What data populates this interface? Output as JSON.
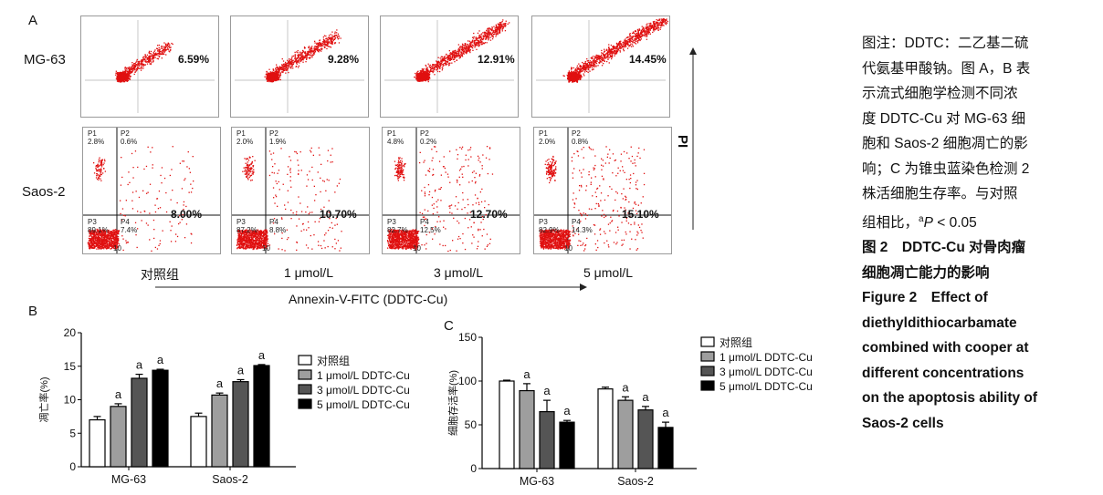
{
  "panels": {
    "a": "A",
    "b": "B",
    "c": "C"
  },
  "flow": {
    "rows": [
      "MG-63",
      "Saos-2"
    ],
    "conditions": [
      "对照组",
      "1 μmol/L",
      "3 μmol/L",
      "5 μmol/L"
    ],
    "mg63_percent": [
      "6.59%",
      "9.28%",
      "12.91%",
      "14.45%"
    ],
    "saos2_percent": [
      "8.00%",
      "10.70%",
      "12.70%",
      "15.10%"
    ],
    "saos2_quadrants": [
      {
        "p1": "2.8%",
        "p2": "0.6%",
        "p3": "89.1%",
        "p4": "7.4%"
      },
      {
        "p1": "2.0%",
        "p2": "1.9%",
        "p3": "87.2%",
        "p4": "8.8%"
      },
      {
        "p1": "4.8%",
        "p2": "0.2%",
        "p3": "82.7%",
        "p4": "12.5%"
      },
      {
        "p1": "2.0%",
        "p2": "0.8%",
        "p3": "82.9%",
        "p4": "14.3%"
      }
    ],
    "quadrant_names": {
      "p1": "P1",
      "p2": "P2",
      "p3": "P3",
      "p4": "P4"
    },
    "x_axis_label": "Annexin-V-FITC (DDTC-Cu)",
    "y_axis_label": "PI",
    "saos2_tick": "10"
  },
  "chart_data": [
    {
      "type": "bar",
      "panel": "B",
      "categories": [
        "MG-63",
        "Saos-2"
      ],
      "series": [
        {
          "name": "对照组",
          "values": [
            7.0,
            7.5
          ],
          "errors": [
            0.5,
            0.5
          ],
          "color": "#ffffff"
        },
        {
          "name": "1 μmol/L DDTC-Cu",
          "values": [
            9.0,
            10.7
          ],
          "errors": [
            0.4,
            0.3
          ],
          "color": "#9e9e9e"
        },
        {
          "name": "3 μmol/L DDTC-Cu",
          "values": [
            13.2,
            12.7
          ],
          "errors": [
            0.6,
            0.3
          ],
          "color": "#555555"
        },
        {
          "name": "5 μmol/L DDTC-Cu",
          "values": [
            14.4,
            15.1
          ],
          "errors": [
            0.15,
            0.15
          ],
          "color": "#000000"
        }
      ],
      "significance": [
        [
          "",
          "a",
          "a",
          "a"
        ],
        [
          "",
          "a",
          "a",
          "a"
        ]
      ],
      "ylabel": "凋亡率(%)",
      "ylim": [
        0,
        20
      ],
      "yticks": [
        "0",
        "5",
        "10",
        "15",
        "20"
      ]
    },
    {
      "type": "bar",
      "panel": "C",
      "categories": [
        "MG-63",
        "Saos-2"
      ],
      "series": [
        {
          "name": "对照组",
          "values": [
            100,
            91
          ],
          "errors": [
            1,
            2
          ],
          "color": "#ffffff"
        },
        {
          "name": "1 μmol/L DDTC-Cu",
          "values": [
            89,
            78
          ],
          "errors": [
            8,
            4
          ],
          "color": "#9e9e9e"
        },
        {
          "name": "3 μmol/L DDTC-Cu",
          "values": [
            65,
            67
          ],
          "errors": [
            13,
            4
          ],
          "color": "#555555"
        },
        {
          "name": "5 μmol/L DDTC-Cu",
          "values": [
            53,
            47
          ],
          "errors": [
            2,
            6
          ],
          "color": "#000000"
        }
      ],
      "significance": [
        [
          "",
          "a",
          "a",
          "a"
        ],
        [
          "",
          "a",
          "a",
          "a"
        ]
      ],
      "ylabel": "细胞存活率(%)",
      "ylim": [
        0,
        150
      ],
      "yticks": [
        "0",
        "50",
        "100",
        "150"
      ]
    }
  ],
  "caption": {
    "note_lines": [
      "图注：DDTC：二乙基二硫",
      "代氨基甲酸钠。图 A，B 表",
      "示流式细胞学检测不同浓",
      "度 DDTC-Cu 对 MG-63 细",
      "胞和 Saos-2 细胞凋亡的影",
      "响；C 为锥虫蓝染色检测 2",
      "株活细胞生存率。与对照"
    ],
    "note_last_prefix": "组相比，",
    "note_sup": "a",
    "note_p": "P",
    "note_last_suffix": " < 0.05",
    "title_zh_1": "图 2　DDTC-Cu 对骨肉瘤",
    "title_zh_2": "细胞凋亡能力的影响",
    "title_en_lines": [
      "Figure 2　Effect of",
      "diethyldithiocarbamate",
      "combined with cooper at",
      "different concentrations",
      "on the apoptosis ability of",
      "Saos-2 cells"
    ]
  }
}
